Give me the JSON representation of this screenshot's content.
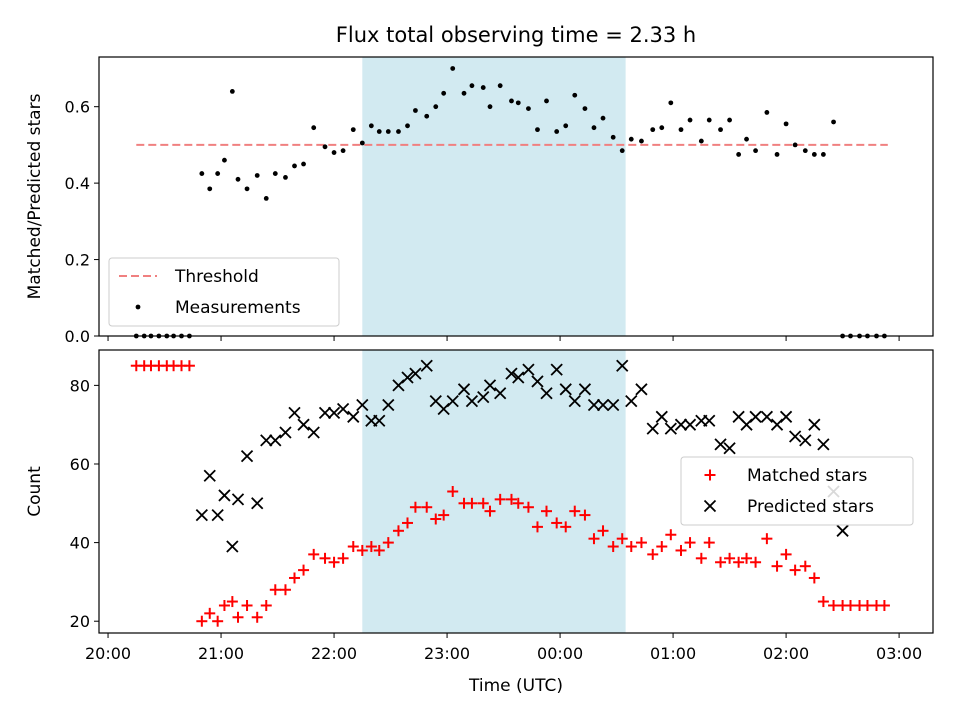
{
  "chart_data": {
    "title": "Flux total observing time = 2.33 h",
    "xlabel": "Time (UTC)",
    "x_unit": "hours after 20:00 UTC (20:00 on day 1 through 03:00 on day 2)",
    "xlim": [
      -0.08,
      7.3
    ],
    "x_tick_labels": [
      "20:00",
      "21:00",
      "22:00",
      "23:00",
      "00:00",
      "01:00",
      "02:00",
      "03:00"
    ],
    "shaded_interval": {
      "start": 2.25,
      "end": 4.58,
      "color": "#add8e6"
    },
    "panels": [
      {
        "type": "scatter",
        "ylabel": "Matched/Predicted stars",
        "ylim": [
          0,
          0.73
        ],
        "y_tick_labels": [
          "0.0",
          "0.2",
          "0.4",
          "0.6"
        ],
        "legend_position": "lower-left",
        "threshold": {
          "name": "Threshold",
          "value": 0.5,
          "x_range": [
            0.25,
            6.9
          ],
          "color": "#f08080"
        },
        "series": [
          {
            "name": "Measurements",
            "marker": "dot",
            "color": "#000000",
            "x": [
              0.25,
              0.32,
              0.38,
              0.45,
              0.52,
              0.58,
              0.65,
              0.72,
              0.83,
              0.9,
              0.97,
              1.03,
              1.1,
              1.15,
              1.23,
              1.32,
              1.4,
              1.48,
              1.57,
              1.65,
              1.73,
              1.82,
              1.92,
              2.0,
              2.08,
              2.17,
              2.25,
              2.33,
              2.4,
              2.48,
              2.57,
              2.65,
              2.72,
              2.82,
              2.9,
              2.97,
              3.05,
              3.15,
              3.22,
              3.32,
              3.38,
              3.47,
              3.57,
              3.63,
              3.72,
              3.8,
              3.88,
              3.97,
              4.05,
              4.13,
              4.22,
              4.3,
              4.38,
              4.47,
              4.55,
              4.63,
              4.72,
              4.82,
              4.9,
              4.98,
              5.07,
              5.15,
              5.25,
              5.32,
              5.42,
              5.5,
              5.58,
              5.65,
              5.73,
              5.83,
              5.92,
              6.0,
              6.08,
              6.17,
              6.25,
              6.33,
              6.42,
              6.5,
              6.57,
              6.65,
              6.72,
              6.8,
              6.87
            ],
            "y": [
              0,
              0,
              0,
              0,
              0,
              0,
              0,
              0,
              0.425,
              0.385,
              0.425,
              0.46,
              0.64,
              0.41,
              0.385,
              0.42,
              0.36,
              0.425,
              0.415,
              0.445,
              0.45,
              0.545,
              0.495,
              0.48,
              0.485,
              0.54,
              0.505,
              0.55,
              0.535,
              0.535,
              0.535,
              0.55,
              0.59,
              0.575,
              0.6,
              0.635,
              0.7,
              0.635,
              0.655,
              0.65,
              0.6,
              0.655,
              0.615,
              0.61,
              0.595,
              0.54,
              0.615,
              0.535,
              0.55,
              0.63,
              0.595,
              0.545,
              0.57,
              0.52,
              0.485,
              0.515,
              0.51,
              0.54,
              0.545,
              0.61,
              0.54,
              0.565,
              0.51,
              0.565,
              0.54,
              0.565,
              0.475,
              0.515,
              0.485,
              0.585,
              0.475,
              0.555,
              0.5,
              0.485,
              0.475,
              0.475,
              0.56,
              0,
              0,
              0,
              0,
              0,
              0
            ]
          }
        ]
      },
      {
        "type": "scatter",
        "ylabel": "Count",
        "ylim": [
          17,
          89
        ],
        "y_tick_labels": [
          "20",
          "40",
          "60",
          "80"
        ],
        "legend_position": "center-right",
        "series": [
          {
            "name": "Matched stars",
            "marker": "plus",
            "color": "#ff0000",
            "x": [
              0.25,
              0.32,
              0.38,
              0.45,
              0.52,
              0.58,
              0.65,
              0.72,
              0.83,
              0.9,
              0.97,
              1.03,
              1.1,
              1.15,
              1.23,
              1.32,
              1.4,
              1.48,
              1.57,
              1.65,
              1.73,
              1.82,
              1.92,
              2.0,
              2.08,
              2.17,
              2.25,
              2.33,
              2.4,
              2.48,
              2.57,
              2.65,
              2.72,
              2.82,
              2.9,
              2.97,
              3.05,
              3.15,
              3.22,
              3.32,
              3.38,
              3.47,
              3.57,
              3.63,
              3.72,
              3.8,
              3.88,
              3.97,
              4.05,
              4.13,
              4.22,
              4.3,
              4.38,
              4.47,
              4.55,
              4.63,
              4.72,
              4.82,
              4.9,
              4.98,
              5.07,
              5.15,
              5.25,
              5.32,
              5.42,
              5.5,
              5.58,
              5.65,
              5.73,
              5.83,
              5.92,
              6.0,
              6.08,
              6.17,
              6.25,
              6.33,
              6.42,
              6.5,
              6.57,
              6.65,
              6.72,
              6.8,
              6.87
            ],
            "y": [
              85,
              85,
              85,
              85,
              85,
              85,
              85,
              85,
              20,
              22,
              20,
              24,
              25,
              21,
              24,
              21,
              24,
              28,
              28,
              31,
              33,
              37,
              36,
              35,
              36,
              39,
              38,
              39,
              38,
              40,
              43,
              45,
              49,
              49,
              46,
              47,
              53,
              50,
              50,
              50,
              48,
              51,
              51,
              50,
              49,
              44,
              48,
              45,
              44,
              48,
              47,
              41,
              43,
              39,
              41,
              39,
              40,
              37,
              39,
              42,
              38,
              40,
              36,
              40,
              35,
              36,
              35,
              36,
              35,
              41,
              34,
              37,
              33,
              34,
              31,
              25,
              24,
              24,
              24,
              24,
              24,
              24,
              24
            ]
          },
          {
            "name": "Predicted stars",
            "marker": "x",
            "color": "#000000",
            "x": [
              0.83,
              0.9,
              0.97,
              1.03,
              1.1,
              1.15,
              1.23,
              1.32,
              1.4,
              1.48,
              1.57,
              1.65,
              1.73,
              1.82,
              1.92,
              2.0,
              2.08,
              2.17,
              2.25,
              2.33,
              2.4,
              2.48,
              2.57,
              2.65,
              2.72,
              2.82,
              2.9,
              2.97,
              3.05,
              3.15,
              3.22,
              3.32,
              3.38,
              3.47,
              3.57,
              3.63,
              3.72,
              3.8,
              3.88,
              3.97,
              4.05,
              4.13,
              4.22,
              4.3,
              4.38,
              4.47,
              4.55,
              4.63,
              4.72,
              4.82,
              4.9,
              4.98,
              5.07,
              5.15,
              5.25,
              5.32,
              5.42,
              5.5,
              5.58,
              5.65,
              5.73,
              5.83,
              5.92,
              6.0,
              6.08,
              6.17,
              6.25,
              6.33,
              6.42,
              6.5
            ],
            "y": [
              47,
              57,
              47,
              52,
              39,
              51,
              62,
              50,
              66,
              66,
              68,
              73,
              70,
              68,
              73,
              73,
              74,
              72,
              75,
              71,
              71,
              75,
              80,
              82,
              83,
              85,
              76,
              74,
              76,
              79,
              76,
              77,
              80,
              78,
              83,
              82,
              84,
              81,
              78,
              84,
              79,
              76,
              79,
              75,
              75,
              75,
              85,
              76,
              79,
              69,
              72,
              69,
              70,
              70,
              71,
              71,
              65,
              64,
              72,
              70,
              72,
              72,
              70,
              72,
              67,
              66,
              70,
              65,
              53,
              43
            ]
          }
        ]
      }
    ]
  }
}
